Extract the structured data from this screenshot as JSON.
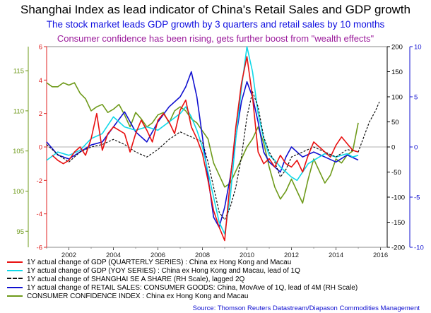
{
  "chart_data": {
    "type": "line",
    "title": "Shanghai Index as lead indicator of China's Retail Sales and GDP growth",
    "subtitle": "The stock market leads GDP growth by 3 quarters and retail sales by 10 months",
    "subtitle2": "Consumer confidence has been rising, gets further boost from \"wealth effects\"",
    "source": "Source: Thomson Reuters Datastream/Diapason Commodities Management",
    "x_ticks": [
      "2002",
      "2004",
      "2006",
      "2008",
      "2010",
      "2012",
      "2014",
      "2016"
    ],
    "xlim": [
      2001.0,
      2016.3
    ],
    "axes": {
      "outer_left": {
        "ticks": [
          "95",
          "100",
          "105",
          "110",
          "115"
        ],
        "range": [
          93.0,
          118.0
        ],
        "color": "#6e9a1a"
      },
      "inner_left": {
        "ticks": [
          "-6",
          "-4",
          "-2",
          "0",
          "2",
          "4",
          "6"
        ],
        "range": [
          -6,
          6
        ],
        "color": "#e02020"
      },
      "inner_right": {
        "ticks": [
          "-200",
          "-150",
          "-100",
          "-50",
          "0",
          "50",
          "100",
          "150",
          "200"
        ],
        "range": [
          -200,
          200
        ],
        "color": "#000000"
      },
      "outer_right": {
        "ticks": [
          "-10",
          "-5",
          "0",
          "5",
          "10"
        ],
        "range": [
          -10,
          10
        ],
        "color": "#1010d0"
      }
    },
    "series": [
      {
        "name": "1Y actual change of GDP (QUARTERLY SERIES) : China ex Hong Kong and Macau",
        "color": "#e81010",
        "axis": "inner_left",
        "x": [
          2001.25,
          2001.5,
          2001.75,
          2002.0,
          2002.25,
          2002.5,
          2002.75,
          2003.0,
          2003.25,
          2003.5,
          2003.75,
          2004.0,
          2004.25,
          2004.5,
          2004.75,
          2005.0,
          2005.25,
          2005.5,
          2005.75,
          2006.0,
          2006.25,
          2006.5,
          2006.75,
          2007.0,
          2007.25,
          2007.5,
          2007.75,
          2008.0,
          2008.25,
          2008.5,
          2008.75,
          2009.0,
          2009.25,
          2009.5,
          2009.75,
          2010.0,
          2010.25,
          2010.5,
          2010.75,
          2011.0,
          2011.25,
          2011.5,
          2011.75,
          2012.0,
          2012.25,
          2012.5,
          2012.75,
          2013.0,
          2013.25,
          2013.5,
          2013.75,
          2014.0,
          2014.25,
          2014.5,
          2014.75,
          2015.0
        ],
        "y": [
          -0.5,
          -0.8,
          -1.0,
          -0.8,
          -0.3,
          0.0,
          -0.5,
          0.5,
          2.0,
          -0.2,
          0.8,
          1.2,
          1.0,
          0.8,
          -0.3,
          0.8,
          1.6,
          1.0,
          0.3,
          1.6,
          2.0,
          1.5,
          0.8,
          2.2,
          2.8,
          1.2,
          0.5,
          -0.4,
          -2.0,
          -3.8,
          -4.8,
          -5.6,
          -2.0,
          1.2,
          3.8,
          5.4,
          3.0,
          -0.3,
          -1.0,
          -0.7,
          -1.2,
          -0.5,
          -1.0,
          -1.2,
          -0.8,
          -1.5,
          -0.5,
          0.3,
          0.0,
          -0.3,
          -0.6,
          0.1,
          0.6,
          0.2,
          -0.2,
          -0.3
        ]
      },
      {
        "name": "1Y actual change of GDP (YOY SERIES) : China ex Hong Kong and Macau, lead of 1Q",
        "color": "#10d8e8",
        "axis": "inner_left",
        "x": [
          2001.0,
          2001.5,
          2002.0,
          2002.5,
          2003.0,
          2003.5,
          2004.0,
          2004.5,
          2005.0,
          2005.5,
          2006.0,
          2006.5,
          2007.0,
          2007.25,
          2007.5,
          2007.75,
          2008.0,
          2008.25,
          2008.5,
          2008.75,
          2009.0,
          2009.25,
          2009.5,
          2009.75,
          2010.0,
          2010.25,
          2010.5,
          2010.75,
          2011.0,
          2011.25,
          2011.5,
          2011.75,
          2012.0,
          2012.25,
          2012.5,
          2012.75,
          2013.0,
          2013.25,
          2013.5,
          2013.75,
          2014.0,
          2014.25,
          2014.5,
          2014.75,
          2015.0
        ],
        "y": [
          -0.8,
          -0.3,
          -0.5,
          -0.2,
          0.5,
          0.8,
          1.8,
          1.2,
          1.0,
          1.2,
          1.0,
          1.5,
          2.0,
          2.4,
          1.8,
          1.0,
          0.0,
          -1.5,
          -3.0,
          -4.5,
          -5.2,
          -3.0,
          0.5,
          3.5,
          6.0,
          4.5,
          2.0,
          0.5,
          -0.5,
          -0.8,
          -1.2,
          -1.5,
          -1.8,
          -2.0,
          -1.5,
          -1.0,
          -0.8,
          -0.6,
          -0.4,
          -0.5,
          -0.6,
          -0.5,
          -0.4,
          -0.6,
          -0.5
        ]
      },
      {
        "name": "1Y actual change of SHANGHAI SE A SHARE (RH Scale), lagged 2Q",
        "color": "#111111",
        "axis": "inner_right",
        "dashed": true,
        "x": [
          2001.0,
          2001.5,
          2002.0,
          2002.5,
          2003.0,
          2003.5,
          2004.0,
          2004.5,
          2005.0,
          2005.5,
          2006.0,
          2006.5,
          2007.0,
          2007.5,
          2008.0,
          2008.25,
          2008.5,
          2008.75,
          2009.0,
          2009.25,
          2009.5,
          2009.75,
          2010.0,
          2010.25,
          2010.5,
          2010.75,
          2011.0,
          2011.25,
          2011.5,
          2011.75,
          2012.0,
          2012.5,
          2013.0,
          2013.5,
          2014.0,
          2014.5,
          2015.0,
          2015.25,
          2015.5,
          2015.75,
          2015.95
        ],
        "y": [
          5,
          -15,
          -30,
          -10,
          0,
          5,
          15,
          5,
          -10,
          -20,
          -5,
          15,
          30,
          20,
          10,
          -30,
          -80,
          -130,
          -145,
          -120,
          -80,
          -20,
          60,
          110,
          80,
          20,
          -10,
          -30,
          -60,
          -45,
          -20,
          -10,
          0,
          -10,
          -20,
          -5,
          -10,
          20,
          50,
          70,
          90
        ]
      },
      {
        "name": "1Y actual change of RETAIL SALES: CONSUMER GOODS: China,  MovAve of 1Q, lead of 4M (RH Scale)",
        "color": "#1010d0",
        "axis": "outer_right",
        "x": [
          2001.0,
          2001.5,
          2002.0,
          2002.5,
          2003.0,
          2003.5,
          2004.0,
          2004.5,
          2005.0,
          2005.5,
          2006.0,
          2006.5,
          2007.0,
          2007.25,
          2007.5,
          2007.75,
          2008.0,
          2008.25,
          2008.5,
          2008.75,
          2009.0,
          2009.25,
          2009.5,
          2009.75,
          2010.0,
          2010.25,
          2010.5,
          2010.75,
          2011.0,
          2011.25,
          2011.5,
          2011.75,
          2012.0,
          2012.5,
          2013.0,
          2013.5,
          2014.0,
          2014.5,
          2015.0
        ],
        "y": [
          0.5,
          -0.8,
          -1.2,
          -0.5,
          0.2,
          0.5,
          2.0,
          3.5,
          1.5,
          0.5,
          2.5,
          4.0,
          5.0,
          6.0,
          7.5,
          5.0,
          1.0,
          -3.0,
          -7.0,
          -8.0,
          -6.0,
          -3.0,
          1.0,
          4.5,
          6.5,
          5.0,
          2.5,
          -0.5,
          -1.5,
          -2.0,
          -2.5,
          -1.0,
          0.0,
          -1.0,
          -0.5,
          -1.0,
          -1.5,
          -0.8,
          -1.3
        ]
      },
      {
        "name": "CONSUMER CONFIDENCE INDEX : China ex Hong Kong and Macau",
        "color": "#6e9a1a",
        "axis": "outer_left",
        "x": [
          2001.0,
          2001.25,
          2001.5,
          2001.75,
          2002.0,
          2002.25,
          2002.5,
          2002.75,
          2003.0,
          2003.25,
          2003.5,
          2003.75,
          2004.0,
          2004.25,
          2004.5,
          2004.75,
          2005.0,
          2005.25,
          2005.5,
          2005.75,
          2006.0,
          2006.25,
          2006.5,
          2006.75,
          2007.0,
          2007.25,
          2007.5,
          2007.75,
          2008.0,
          2008.25,
          2008.5,
          2008.75,
          2009.0,
          2009.25,
          2009.5,
          2009.75,
          2010.0,
          2010.25,
          2010.5,
          2010.75,
          2011.0,
          2011.25,
          2011.5,
          2011.75,
          2012.0,
          2012.25,
          2012.5,
          2012.75,
          2013.0,
          2013.25,
          2013.5,
          2013.75,
          2014.0,
          2014.25,
          2014.5,
          2014.75,
          2015.0
        ],
        "y": [
          113.5,
          113.0,
          113.0,
          113.5,
          113.2,
          113.5,
          112.2,
          111.5,
          110.0,
          110.5,
          110.8,
          109.8,
          110.2,
          110.8,
          109.5,
          108.0,
          109.8,
          109.0,
          108.0,
          108.5,
          109.5,
          109.8,
          108.5,
          110.0,
          110.5,
          110.0,
          109.0,
          108.5,
          107.5,
          106.5,
          103.5,
          102.0,
          100.5,
          101.0,
          102.5,
          104.0,
          105.5,
          106.5,
          108.0,
          106.0,
          103.0,
          100.5,
          99.0,
          100.0,
          101.5,
          100.0,
          98.5,
          101.5,
          104.0,
          102.5,
          101.0,
          102.0,
          104.0,
          103.5,
          104.5,
          105.0,
          108.5
        ]
      }
    ]
  },
  "legend": [
    {
      "label": "1Y actual change of GDP (QUARTERLY SERIES) : China ex Hong Kong and Macau",
      "color": "#e81010"
    },
    {
      "label": "1Y actual change of GDP (YOY SERIES) : China ex Hong Kong and Macau, lead of 1Q",
      "color": "#10d8e8"
    },
    {
      "label": "1Y actual change of SHANGHAI SE A SHARE (RH Scale), lagged 2Q",
      "color": "#111111"
    },
    {
      "label": "1Y actual change of RETAIL SALES: CONSUMER GOODS: China,  MovAve of 1Q, lead of 4M (RH Scale)",
      "color": "#1010d0"
    },
    {
      "label": "CONSUMER CONFIDENCE INDEX : China ex Hong Kong and Macau",
      "color": "#6e9a1a"
    }
  ]
}
